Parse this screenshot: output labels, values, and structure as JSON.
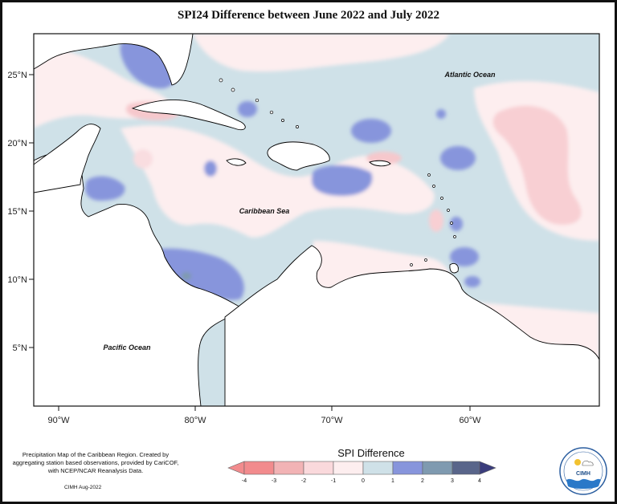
{
  "title": "SPI24 Difference between June 2022 and July 2022",
  "map": {
    "lat_labels": [
      "25°N",
      "20°N",
      "15°N",
      "10°N",
      "5°N"
    ],
    "lon_labels": [
      "90°W",
      "80°W",
      "70°W",
      "60°W"
    ],
    "ocean_labels": {
      "atlantic": "Atlantic Ocean",
      "caribbean": "Caribbean Sea",
      "pacific": "Pacific Ocean"
    }
  },
  "notes": {
    "description": "Precipitation Map of the Caribbean Region. Created by aggregating station based observations, provided by CariCOF, with NCEP/NCAR Reanalysis Data.",
    "credit": "CIMH Aug-2022"
  },
  "legend": {
    "title": "SPI Difference",
    "ticks": [
      "-4",
      "-3",
      "-2",
      "-1",
      "0",
      "1",
      "2",
      "3",
      "4"
    ],
    "colors": [
      "#f28b8d",
      "#f2b3b5",
      "#fad9dc",
      "#fdeeef",
      "#cfe1e8",
      "#8795dc",
      "#7f9ab0",
      "#59658a",
      "#3a3d7c"
    ]
  },
  "logo": {
    "text": "CIMH"
  }
}
